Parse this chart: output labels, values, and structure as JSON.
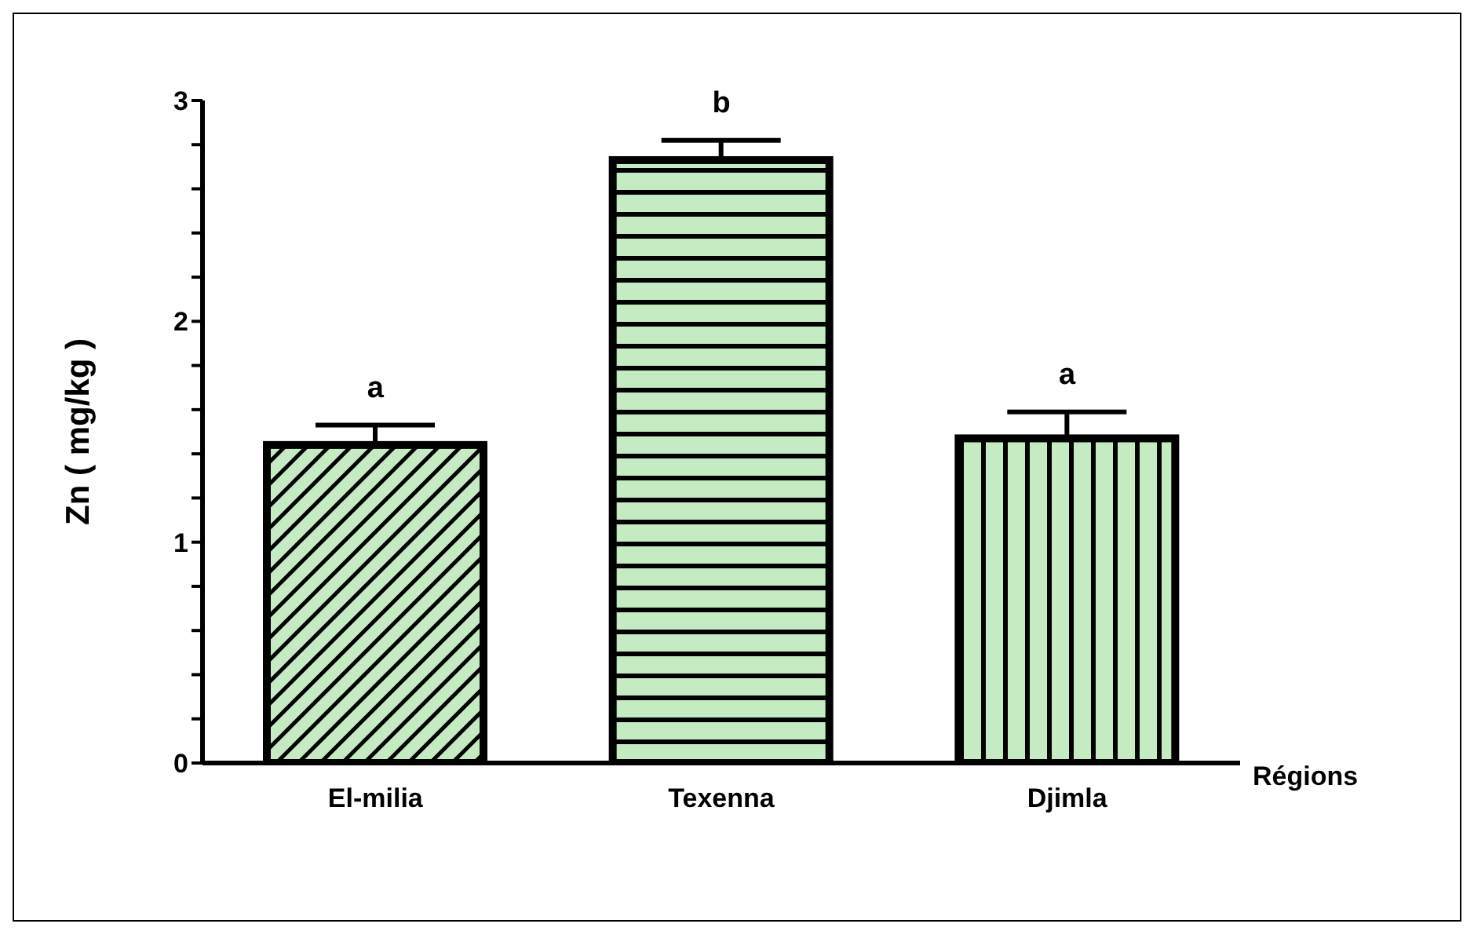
{
  "chart_data": {
    "type": "bar",
    "ylabel": "Zn ( mg/kg )",
    "xlabel": "Régions",
    "categories": [
      "El-milia",
      "Texenna",
      "Djimla"
    ],
    "values": [
      1.44,
      2.73,
      1.47
    ],
    "errors": [
      [
        1.44,
        1.53
      ],
      [
        2.73,
        2.82
      ],
      [
        1.47,
        1.59
      ]
    ],
    "colors": [
      "#c5ebc2",
      "#c5ebc2",
      "#c5ebc2"
    ],
    "ylim": [
      0,
      3
    ],
    "yticks": [
      0,
      {
        "value": 0.2,
        "label": null
      },
      {
        "value": 0.4,
        "label": null
      },
      {
        "value": 0.6,
        "label": null
      },
      {
        "value": 0.8,
        "label": null
      },
      1,
      {
        "value": 1.2,
        "label": null
      },
      {
        "value": 1.4,
        "label": null
      },
      {
        "value": 1.6,
        "label": null
      },
      {
        "value": 1.8,
        "label": null
      },
      2,
      {
        "value": 2.2,
        "label": null
      },
      {
        "value": 2.4,
        "label": null
      },
      {
        "value": 2.6,
        "label": null
      },
      {
        "value": 2.8,
        "label": null
      },
      3
    ],
    "annotations": [
      {
        "text": "a",
        "x": "El-milia",
        "y": 1.53
      },
      {
        "text": "b",
        "x": "Texenna",
        "y": 2.82
      },
      {
        "text": "a",
        "x": "Djimla",
        "y": 1.59
      }
    ],
    "grid": false,
    "legend": false
  }
}
